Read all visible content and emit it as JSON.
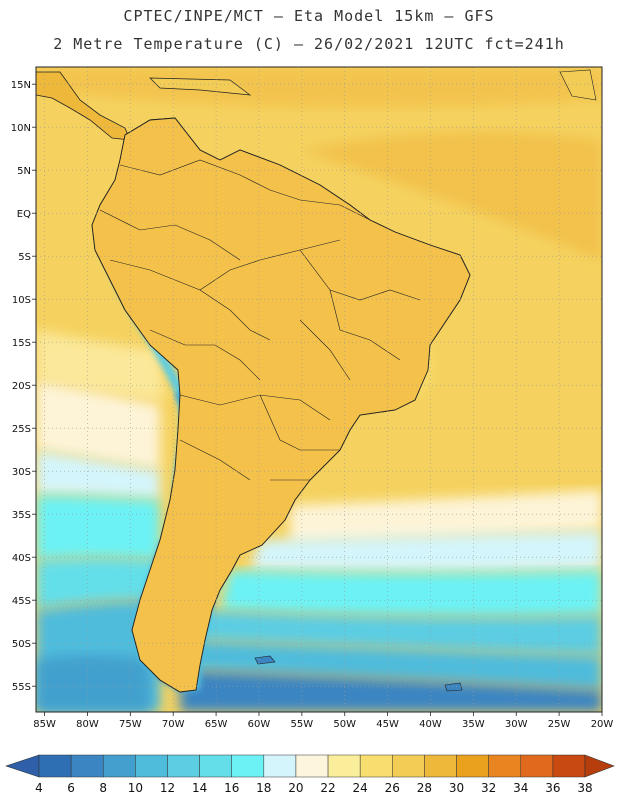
{
  "titles": {
    "line1": "CPTEC/INPE/MCT –  Eta Model 15km – GFS",
    "line2": "2 Metre Temperature (C) – 26/02/2021 12UTC fct=241h"
  },
  "axes": {
    "lat_labels": [
      "15N",
      "10N",
      "5N",
      "EQ",
      "5S",
      "10S",
      "15S",
      "20S",
      "25S",
      "30S",
      "35S",
      "40S",
      "45S",
      "50S",
      "55S"
    ],
    "lon_labels": [
      "85W",
      "80W",
      "75W",
      "70W",
      "65W",
      "60W",
      "55W",
      "50W",
      "45W",
      "40W",
      "35W",
      "30W",
      "25W",
      "20W"
    ],
    "lat_range": [
      17,
      -58
    ],
    "lon_range": [
      -86,
      -20
    ]
  },
  "colorbar": {
    "labels": [
      "4",
      "6",
      "8",
      "10",
      "12",
      "14",
      "16",
      "18",
      "20",
      "22",
      "24",
      "26",
      "28",
      "30",
      "32",
      "34",
      "36",
      "38"
    ],
    "colors": [
      "#2e6fb4",
      "#3a85c2",
      "#43a0ce",
      "#4fbcdc",
      "#5ccde3",
      "#64dfea",
      "#6cf2f5",
      "#d4f5fb",
      "#fdf6dc",
      "#fbee9b",
      "#f8de6e",
      "#f3cc55",
      "#eeb83a",
      "#eaa21e",
      "#e98520",
      "#e0691d",
      "#c84a10"
    ],
    "under_color": "#2e5fa8",
    "over_color": "#b63e0c"
  }
}
